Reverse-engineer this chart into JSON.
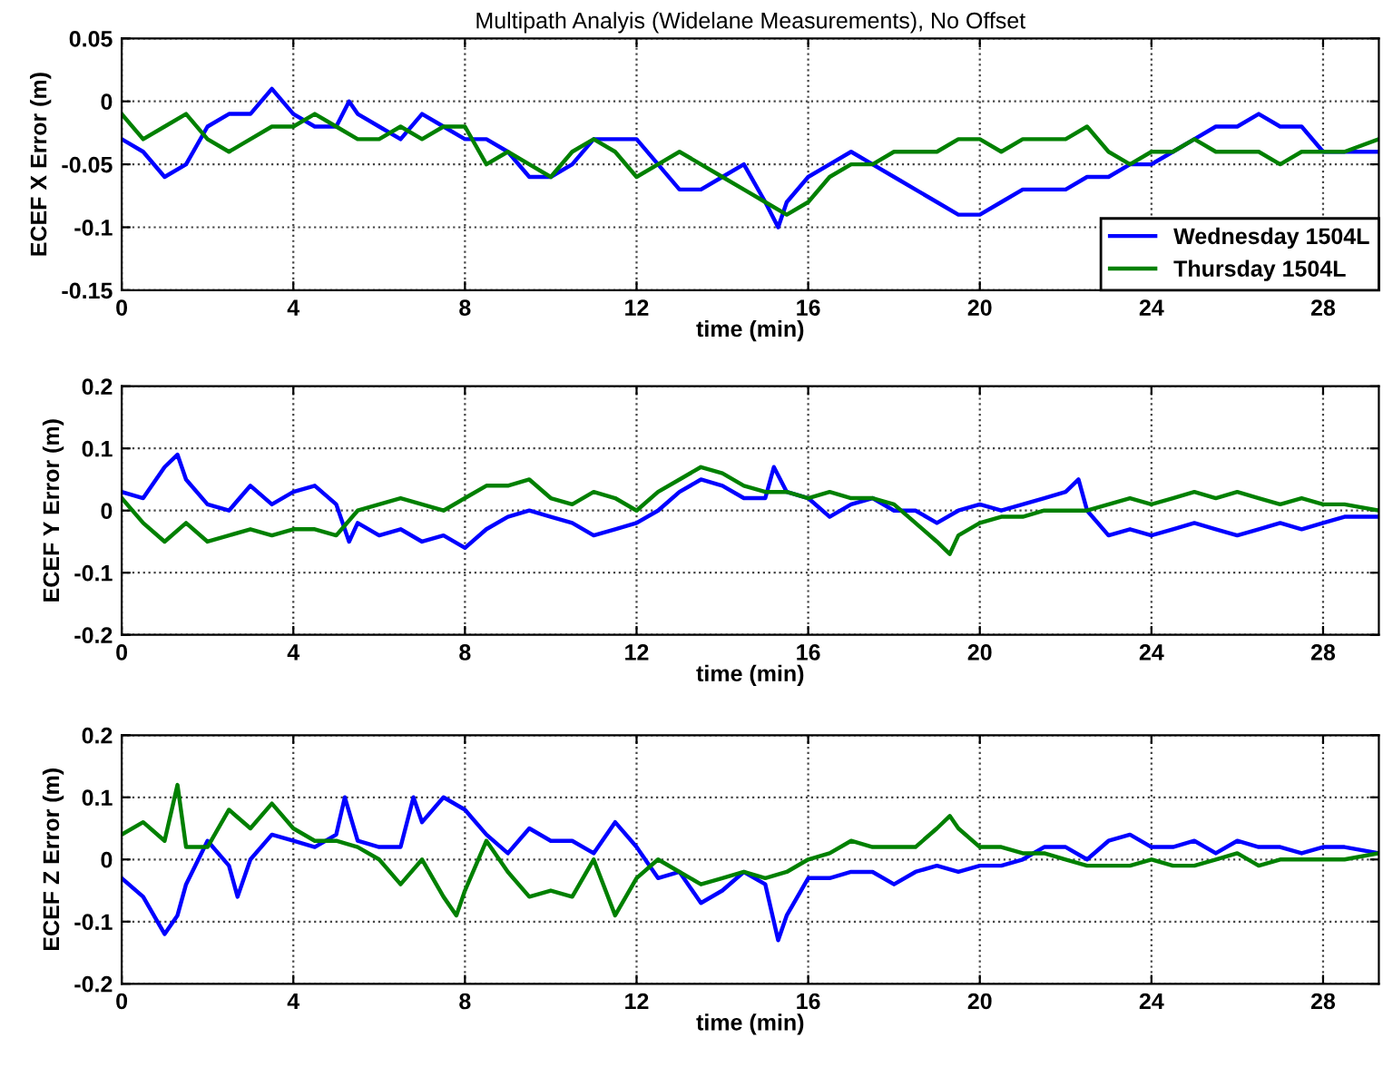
{
  "chart_data": [
    {
      "type": "line",
      "title": "Multipath Analyis (Widelane Measurements), No Offset",
      "xlabel": "time (min)",
      "ylabel": "ECEF X Error (m)",
      "xlim": [
        0,
        29.3
      ],
      "xticks": [
        0,
        4,
        8,
        12,
        16,
        20,
        24,
        28
      ],
      "ylim": [
        -0.15,
        0.05
      ],
      "yticks": [
        -0.15,
        -0.1,
        -0.05,
        0,
        0.05
      ],
      "grid": true,
      "legend": "bottom right",
      "series": [
        {
          "name": "Wednesday 1504L",
          "color": "#0000ff",
          "x": [
            0,
            0.5,
            1,
            1.5,
            2,
            2.5,
            3,
            3.5,
            4,
            4.5,
            5,
            5.3,
            5.5,
            6,
            6.5,
            7,
            7.5,
            8,
            8.5,
            9,
            9.5,
            10,
            10.5,
            11,
            11.5,
            12,
            12.5,
            13,
            13.5,
            14,
            14.5,
            15,
            15.3,
            15.5,
            16,
            16.5,
            17,
            17.5,
            18,
            18.5,
            19,
            19.5,
            20,
            20.5,
            21,
            21.5,
            22,
            22.5,
            23,
            23.5,
            24,
            24.5,
            25,
            25.5,
            26,
            26.5,
            27,
            27.5,
            28,
            28.5,
            29.3
          ],
          "values": [
            -0.03,
            -0.04,
            -0.06,
            -0.05,
            -0.02,
            -0.01,
            -0.01,
            0.01,
            -0.01,
            -0.02,
            -0.02,
            0.0,
            -0.01,
            -0.02,
            -0.03,
            -0.01,
            -0.02,
            -0.03,
            -0.03,
            -0.04,
            -0.06,
            -0.06,
            -0.05,
            -0.03,
            -0.03,
            -0.03,
            -0.05,
            -0.07,
            -0.07,
            -0.06,
            -0.05,
            -0.08,
            -0.1,
            -0.08,
            -0.06,
            -0.05,
            -0.04,
            -0.05,
            -0.06,
            -0.07,
            -0.08,
            -0.09,
            -0.09,
            -0.08,
            -0.07,
            -0.07,
            -0.07,
            -0.06,
            -0.06,
            -0.05,
            -0.05,
            -0.04,
            -0.03,
            -0.02,
            -0.02,
            -0.01,
            -0.02,
            -0.02,
            -0.04,
            -0.04,
            -0.04
          ]
        },
        {
          "name": "Thursday 1504L",
          "color": "#008000",
          "x": [
            0,
            0.5,
            1,
            1.5,
            2,
            2.5,
            3,
            3.5,
            4,
            4.5,
            5,
            5.5,
            6,
            6.5,
            7,
            7.5,
            8,
            8.5,
            9,
            9.5,
            10,
            10.5,
            11,
            11.5,
            12,
            12.5,
            13,
            13.5,
            14,
            14.5,
            15,
            15.5,
            16,
            16.5,
            17,
            17.5,
            18,
            18.5,
            19,
            19.5,
            20,
            20.5,
            21,
            21.5,
            22,
            22.5,
            23,
            23.5,
            24,
            24.5,
            25,
            25.5,
            26,
            26.5,
            27,
            27.5,
            28,
            28.5,
            29.3
          ],
          "values": [
            -0.01,
            -0.03,
            -0.02,
            -0.01,
            -0.03,
            -0.04,
            -0.03,
            -0.02,
            -0.02,
            -0.01,
            -0.02,
            -0.03,
            -0.03,
            -0.02,
            -0.03,
            -0.02,
            -0.02,
            -0.05,
            -0.04,
            -0.05,
            -0.06,
            -0.04,
            -0.03,
            -0.04,
            -0.06,
            -0.05,
            -0.04,
            -0.05,
            -0.06,
            -0.07,
            -0.08,
            -0.09,
            -0.08,
            -0.06,
            -0.05,
            -0.05,
            -0.04,
            -0.04,
            -0.04,
            -0.03,
            -0.03,
            -0.04,
            -0.03,
            -0.03,
            -0.03,
            -0.02,
            -0.04,
            -0.05,
            -0.04,
            -0.04,
            -0.03,
            -0.04,
            -0.04,
            -0.04,
            -0.05,
            -0.04,
            -0.04,
            -0.04,
            -0.03
          ]
        }
      ]
    },
    {
      "type": "line",
      "xlabel": "time (min)",
      "ylabel": "ECEF Y Error (m)",
      "xlim": [
        0,
        29.3
      ],
      "xticks": [
        0,
        4,
        8,
        12,
        16,
        20,
        24,
        28
      ],
      "ylim": [
        -0.2,
        0.2
      ],
      "yticks": [
        -0.2,
        -0.1,
        0,
        0.1,
        0.2
      ],
      "grid": true,
      "series": [
        {
          "color": "#0000ff",
          "x": [
            0,
            0.5,
            1,
            1.3,
            1.5,
            2,
            2.5,
            3,
            3.5,
            4,
            4.5,
            5,
            5.3,
            5.5,
            6,
            6.5,
            7,
            7.5,
            8,
            8.5,
            9,
            9.5,
            10,
            10.5,
            11,
            11.5,
            12,
            12.5,
            13,
            13.5,
            14,
            14.5,
            15,
            15.2,
            15.5,
            16,
            16.5,
            17,
            17.5,
            18,
            18.5,
            19,
            19.5,
            20,
            20.5,
            21,
            21.5,
            22,
            22.3,
            22.5,
            23,
            23.5,
            24,
            24.5,
            25,
            25.5,
            26,
            26.5,
            27,
            27.5,
            28,
            28.5,
            29.3
          ],
          "values": [
            0.03,
            0.02,
            0.07,
            0.09,
            0.05,
            0.01,
            0.0,
            0.04,
            0.01,
            0.03,
            0.04,
            0.01,
            -0.05,
            -0.02,
            -0.04,
            -0.03,
            -0.05,
            -0.04,
            -0.06,
            -0.03,
            -0.01,
            0.0,
            -0.01,
            -0.02,
            -0.04,
            -0.03,
            -0.02,
            0.0,
            0.03,
            0.05,
            0.04,
            0.02,
            0.02,
            0.07,
            0.03,
            0.02,
            -0.01,
            0.01,
            0.02,
            0.0,
            0.0,
            -0.02,
            0.0,
            0.01,
            0.0,
            0.01,
            0.02,
            0.03,
            0.05,
            0.0,
            -0.04,
            -0.03,
            -0.04,
            -0.03,
            -0.02,
            -0.03,
            -0.04,
            -0.03,
            -0.02,
            -0.03,
            -0.02,
            -0.01,
            -0.01
          ]
        },
        {
          "color": "#008000",
          "x": [
            0,
            0.5,
            1,
            1.5,
            2,
            2.5,
            3,
            3.5,
            4,
            4.5,
            5,
            5.5,
            6,
            6.5,
            7,
            7.5,
            8,
            8.5,
            9,
            9.5,
            10,
            10.5,
            11,
            11.5,
            12,
            12.5,
            13,
            13.5,
            14,
            14.5,
            15,
            15.5,
            16,
            16.5,
            17,
            17.5,
            18,
            18.5,
            19,
            19.3,
            19.5,
            20,
            20.5,
            21,
            21.5,
            22,
            22.5,
            23,
            23.5,
            24,
            24.5,
            25,
            25.5,
            26,
            26.5,
            27,
            27.5,
            28,
            28.5,
            29.3
          ],
          "values": [
            0.02,
            -0.02,
            -0.05,
            -0.02,
            -0.05,
            -0.04,
            -0.03,
            -0.04,
            -0.03,
            -0.03,
            -0.04,
            0.0,
            0.01,
            0.02,
            0.01,
            0.0,
            0.02,
            0.04,
            0.04,
            0.05,
            0.02,
            0.01,
            0.03,
            0.02,
            0.0,
            0.03,
            0.05,
            0.07,
            0.06,
            0.04,
            0.03,
            0.03,
            0.02,
            0.03,
            0.02,
            0.02,
            0.01,
            -0.02,
            -0.05,
            -0.07,
            -0.04,
            -0.02,
            -0.01,
            -0.01,
            0.0,
            0.0,
            0.0,
            0.01,
            0.02,
            0.01,
            0.02,
            0.03,
            0.02,
            0.03,
            0.02,
            0.01,
            0.02,
            0.01,
            0.01,
            0.0
          ]
        }
      ]
    },
    {
      "type": "line",
      "xlabel": "time (min)",
      "ylabel": "ECEF Z Error (m)",
      "xlim": [
        0,
        29.3
      ],
      "xticks": [
        0,
        4,
        8,
        12,
        16,
        20,
        24,
        28
      ],
      "ylim": [
        -0.2,
        0.2
      ],
      "yticks": [
        -0.2,
        -0.1,
        0,
        0.1,
        0.2
      ],
      "grid": true,
      "series": [
        {
          "color": "#0000ff",
          "x": [
            0,
            0.5,
            1,
            1.3,
            1.5,
            2,
            2.5,
            2.7,
            3,
            3.5,
            4,
            4.5,
            5,
            5.2,
            5.5,
            6,
            6.5,
            6.8,
            7,
            7.5,
            8,
            8.5,
            9,
            9.5,
            10,
            10.5,
            11,
            11.5,
            12,
            12.5,
            13,
            13.5,
            14,
            14.5,
            15,
            15.3,
            15.5,
            16,
            16.5,
            17,
            17.5,
            18,
            18.5,
            19,
            19.5,
            20,
            20.5,
            21,
            21.5,
            22,
            22.5,
            23,
            23.5,
            24,
            24.5,
            25,
            25.5,
            26,
            26.5,
            27,
            27.5,
            28,
            28.5,
            29.3
          ],
          "values": [
            -0.03,
            -0.06,
            -0.12,
            -0.09,
            -0.04,
            0.03,
            -0.01,
            -0.06,
            0.0,
            0.04,
            0.03,
            0.02,
            0.04,
            0.1,
            0.03,
            0.02,
            0.02,
            0.1,
            0.06,
            0.1,
            0.08,
            0.04,
            0.01,
            0.05,
            0.03,
            0.03,
            0.01,
            0.06,
            0.02,
            -0.03,
            -0.02,
            -0.07,
            -0.05,
            -0.02,
            -0.04,
            -0.13,
            -0.09,
            -0.03,
            -0.03,
            -0.02,
            -0.02,
            -0.04,
            -0.02,
            -0.01,
            -0.02,
            -0.01,
            -0.01,
            0.0,
            0.02,
            0.02,
            0.0,
            0.03,
            0.04,
            0.02,
            0.02,
            0.03,
            0.01,
            0.03,
            0.02,
            0.02,
            0.01,
            0.02,
            0.02,
            0.01
          ]
        },
        {
          "color": "#008000",
          "x": [
            0,
            0.5,
            1,
            1.3,
            1.5,
            2,
            2.5,
            3,
            3.5,
            4,
            4.5,
            5,
            5.5,
            6,
            6.5,
            7,
            7.5,
            7.8,
            8,
            8.5,
            9,
            9.5,
            10,
            10.5,
            11,
            11.5,
            12,
            12.5,
            13,
            13.5,
            14,
            14.5,
            15,
            15.5,
            16,
            16.5,
            17,
            17.5,
            18,
            18.5,
            19,
            19.3,
            19.5,
            20,
            20.5,
            21,
            21.5,
            22,
            22.5,
            23,
            23.5,
            24,
            24.5,
            25,
            25.5,
            26,
            26.5,
            27,
            27.5,
            28,
            28.5,
            29.3
          ],
          "values": [
            0.04,
            0.06,
            0.03,
            0.12,
            0.02,
            0.02,
            0.08,
            0.05,
            0.09,
            0.05,
            0.03,
            0.03,
            0.02,
            0.0,
            -0.04,
            0.0,
            -0.06,
            -0.09,
            -0.05,
            0.03,
            -0.02,
            -0.06,
            -0.05,
            -0.06,
            0.0,
            -0.09,
            -0.03,
            0.0,
            -0.02,
            -0.04,
            -0.03,
            -0.02,
            -0.03,
            -0.02,
            0.0,
            0.01,
            0.03,
            0.02,
            0.02,
            0.02,
            0.05,
            0.07,
            0.05,
            0.02,
            0.02,
            0.01,
            0.01,
            0.0,
            -0.01,
            -0.01,
            -0.01,
            0.0,
            -0.01,
            -0.01,
            0.0,
            0.01,
            -0.01,
            0.0,
            0.0,
            0.0,
            0.0,
            0.01
          ]
        }
      ]
    }
  ]
}
